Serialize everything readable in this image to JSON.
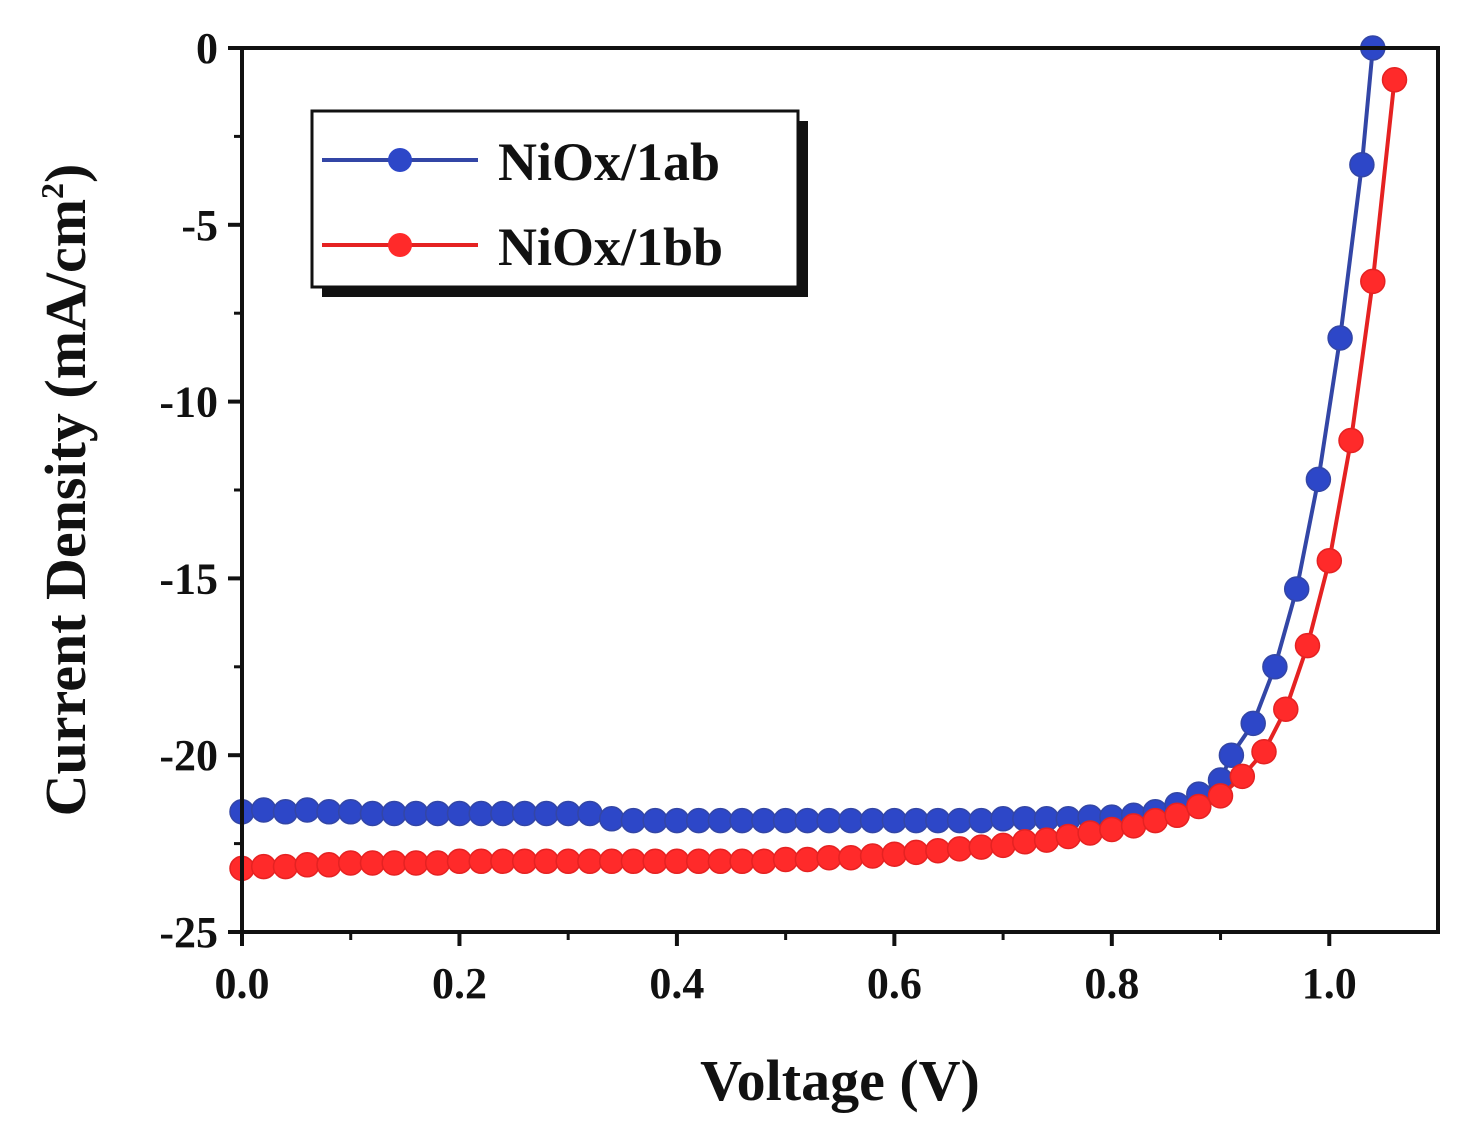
{
  "chart_data": {
    "type": "line",
    "xlabel": "Voltage (V)",
    "ylabel": "Current Density (mA/cm",
    "ylabel_sup": "2",
    "ylabel_close": ")",
    "xlim": [
      0.0,
      1.1
    ],
    "ylim": [
      -25,
      0
    ],
    "xticks": [
      0.0,
      0.2,
      0.4,
      0.6,
      0.8,
      1.0
    ],
    "xtick_labels": [
      "0.0",
      "0.2",
      "0.4",
      "0.6",
      "0.8",
      "1.0"
    ],
    "yticks": [
      0,
      -5,
      -10,
      -15,
      -20,
      -25
    ],
    "ytick_labels": [
      "0",
      "-5",
      "-10",
      "-15",
      "-20",
      "-25"
    ],
    "grid": false,
    "legend_position": "top-left",
    "series": [
      {
        "name": "NiOx/1ab",
        "color": "#3346a6",
        "marker_color": "#2d47c8",
        "points": [
          [
            0.0,
            -21.6
          ],
          [
            0.02,
            -21.55
          ],
          [
            0.04,
            -21.6
          ],
          [
            0.06,
            -21.55
          ],
          [
            0.08,
            -21.6
          ],
          [
            0.1,
            -21.6
          ],
          [
            0.12,
            -21.65
          ],
          [
            0.14,
            -21.65
          ],
          [
            0.16,
            -21.65
          ],
          [
            0.18,
            -21.65
          ],
          [
            0.2,
            -21.65
          ],
          [
            0.22,
            -21.65
          ],
          [
            0.24,
            -21.65
          ],
          [
            0.26,
            -21.65
          ],
          [
            0.28,
            -21.65
          ],
          [
            0.3,
            -21.65
          ],
          [
            0.32,
            -21.65
          ],
          [
            0.34,
            -21.8
          ],
          [
            0.36,
            -21.85
          ],
          [
            0.38,
            -21.85
          ],
          [
            0.4,
            -21.85
          ],
          [
            0.42,
            -21.85
          ],
          [
            0.44,
            -21.85
          ],
          [
            0.46,
            -21.85
          ],
          [
            0.48,
            -21.85
          ],
          [
            0.5,
            -21.85
          ],
          [
            0.52,
            -21.85
          ],
          [
            0.54,
            -21.85
          ],
          [
            0.56,
            -21.85
          ],
          [
            0.58,
            -21.85
          ],
          [
            0.6,
            -21.85
          ],
          [
            0.62,
            -21.85
          ],
          [
            0.64,
            -21.85
          ],
          [
            0.66,
            -21.85
          ],
          [
            0.68,
            -21.85
          ],
          [
            0.7,
            -21.8
          ],
          [
            0.72,
            -21.8
          ],
          [
            0.74,
            -21.8
          ],
          [
            0.76,
            -21.8
          ],
          [
            0.78,
            -21.75
          ],
          [
            0.8,
            -21.75
          ],
          [
            0.82,
            -21.7
          ],
          [
            0.84,
            -21.6
          ],
          [
            0.86,
            -21.4
          ],
          [
            0.88,
            -21.1
          ],
          [
            0.9,
            -20.7
          ],
          [
            0.91,
            -20.0
          ],
          [
            0.93,
            -19.1
          ],
          [
            0.95,
            -17.5
          ],
          [
            0.97,
            -15.3
          ],
          [
            0.99,
            -12.2
          ],
          [
            1.01,
            -8.2
          ],
          [
            1.03,
            -3.3
          ],
          [
            1.04,
            0.0
          ]
        ]
      },
      {
        "name": "NiOx/1bb",
        "color": "#e52222",
        "marker_color": "#ff2a2a",
        "points": [
          [
            0.0,
            -23.2
          ],
          [
            0.02,
            -23.15
          ],
          [
            0.04,
            -23.15
          ],
          [
            0.06,
            -23.1
          ],
          [
            0.08,
            -23.1
          ],
          [
            0.1,
            -23.05
          ],
          [
            0.12,
            -23.05
          ],
          [
            0.14,
            -23.05
          ],
          [
            0.16,
            -23.05
          ],
          [
            0.18,
            -23.05
          ],
          [
            0.2,
            -23.0
          ],
          [
            0.22,
            -23.0
          ],
          [
            0.24,
            -23.0
          ],
          [
            0.26,
            -23.0
          ],
          [
            0.28,
            -23.0
          ],
          [
            0.3,
            -23.0
          ],
          [
            0.32,
            -23.0
          ],
          [
            0.34,
            -23.0
          ],
          [
            0.36,
            -23.0
          ],
          [
            0.38,
            -23.0
          ],
          [
            0.4,
            -23.0
          ],
          [
            0.42,
            -23.0
          ],
          [
            0.44,
            -23.0
          ],
          [
            0.46,
            -23.0
          ],
          [
            0.48,
            -23.0
          ],
          [
            0.5,
            -22.95
          ],
          [
            0.52,
            -22.95
          ],
          [
            0.54,
            -22.9
          ],
          [
            0.56,
            -22.9
          ],
          [
            0.58,
            -22.85
          ],
          [
            0.6,
            -22.8
          ],
          [
            0.62,
            -22.75
          ],
          [
            0.64,
            -22.7
          ],
          [
            0.66,
            -22.65
          ],
          [
            0.68,
            -22.6
          ],
          [
            0.7,
            -22.55
          ],
          [
            0.72,
            -22.45
          ],
          [
            0.74,
            -22.4
          ],
          [
            0.76,
            -22.3
          ],
          [
            0.78,
            -22.2
          ],
          [
            0.8,
            -22.1
          ],
          [
            0.82,
            -22.0
          ],
          [
            0.84,
            -21.85
          ],
          [
            0.86,
            -21.7
          ],
          [
            0.88,
            -21.45
          ],
          [
            0.9,
            -21.15
          ],
          [
            0.92,
            -20.6
          ],
          [
            0.94,
            -19.9
          ],
          [
            0.96,
            -18.7
          ],
          [
            0.98,
            -16.9
          ],
          [
            1.0,
            -14.5
          ],
          [
            1.02,
            -11.1
          ],
          [
            1.04,
            -6.6
          ],
          [
            1.06,
            -0.9
          ]
        ]
      }
    ]
  }
}
